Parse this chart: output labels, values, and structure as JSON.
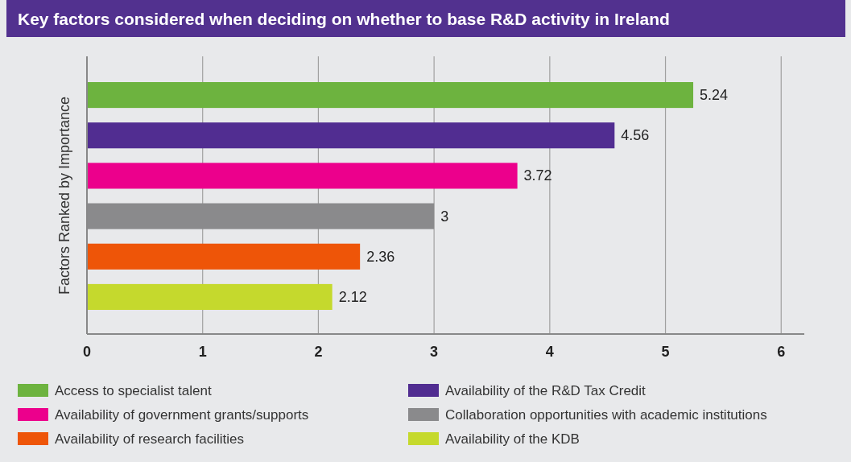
{
  "chart_data": {
    "type": "bar",
    "orientation": "horizontal",
    "title": "Key factors considered when deciding on whether to base R&D activity in Ireland",
    "ylabel": "Factors Ranked by Importance",
    "categories": [
      null,
      null,
      null,
      null,
      null,
      null
    ],
    "series": [
      {
        "name": "Access to specialist talent",
        "color": "#6db33f",
        "values": [
          5.24,
          null,
          null,
          null,
          null,
          null
        ]
      },
      {
        "name": "Availability of the R&D Tax Credit",
        "color": "#512d91",
        "values": [
          null,
          4.56,
          null,
          null,
          null,
          null
        ]
      },
      {
        "name": "Availability of government grants/supports",
        "color": "#ec008c",
        "values": [
          null,
          null,
          3.72,
          null,
          null,
          null
        ]
      },
      {
        "name": "Collaboration opportunities with academic institutions",
        "color": "#8a8a8c",
        "values": [
          null,
          null,
          null,
          3,
          null,
          null
        ]
      },
      {
        "name": "Availability of research facilities",
        "color": "#ee5508",
        "values": [
          null,
          null,
          null,
          null,
          2.36,
          null
        ]
      },
      {
        "name": "Availability of the KDB",
        "color": "#c5d92d",
        "values": [
          null,
          null,
          null,
          null,
          null,
          2.12
        ]
      }
    ],
    "xlim": [
      0,
      6.2
    ],
    "xticks": [
      0,
      1,
      2,
      3,
      4,
      5,
      6
    ],
    "grid": "x",
    "data_labels": true,
    "legend": "bottom"
  }
}
